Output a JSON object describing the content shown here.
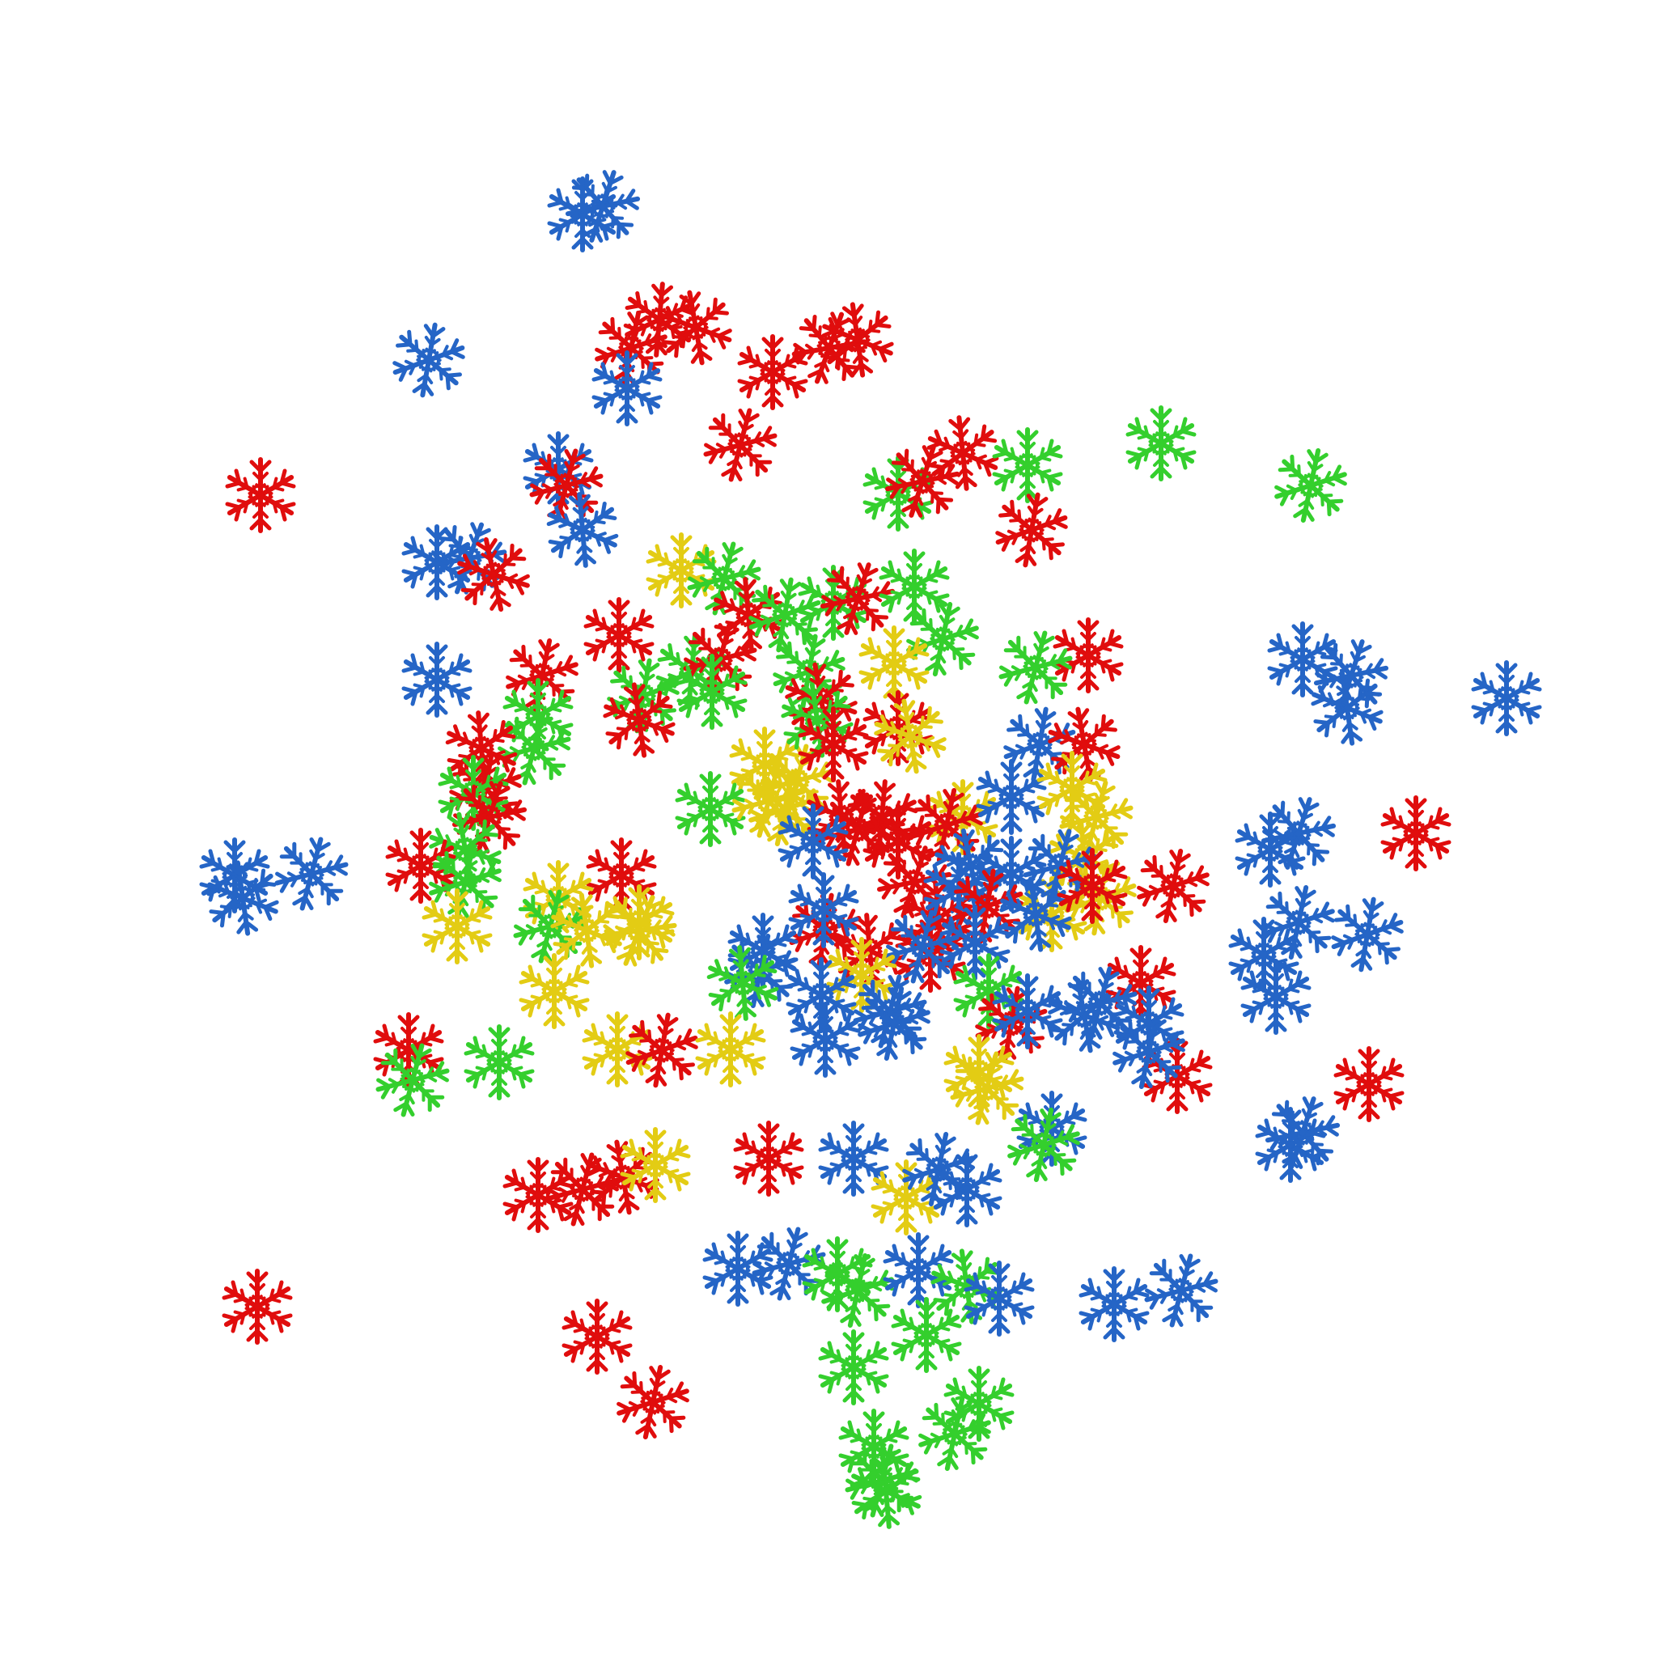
{
  "scene": {
    "background": "#ffffff",
    "icon": "snowflake-icon",
    "palette": {
      "red": "#e00d0d",
      "blue": "#2565c6",
      "green": "#34cf2d",
      "yellow": "#e3cc14"
    }
  }
}
